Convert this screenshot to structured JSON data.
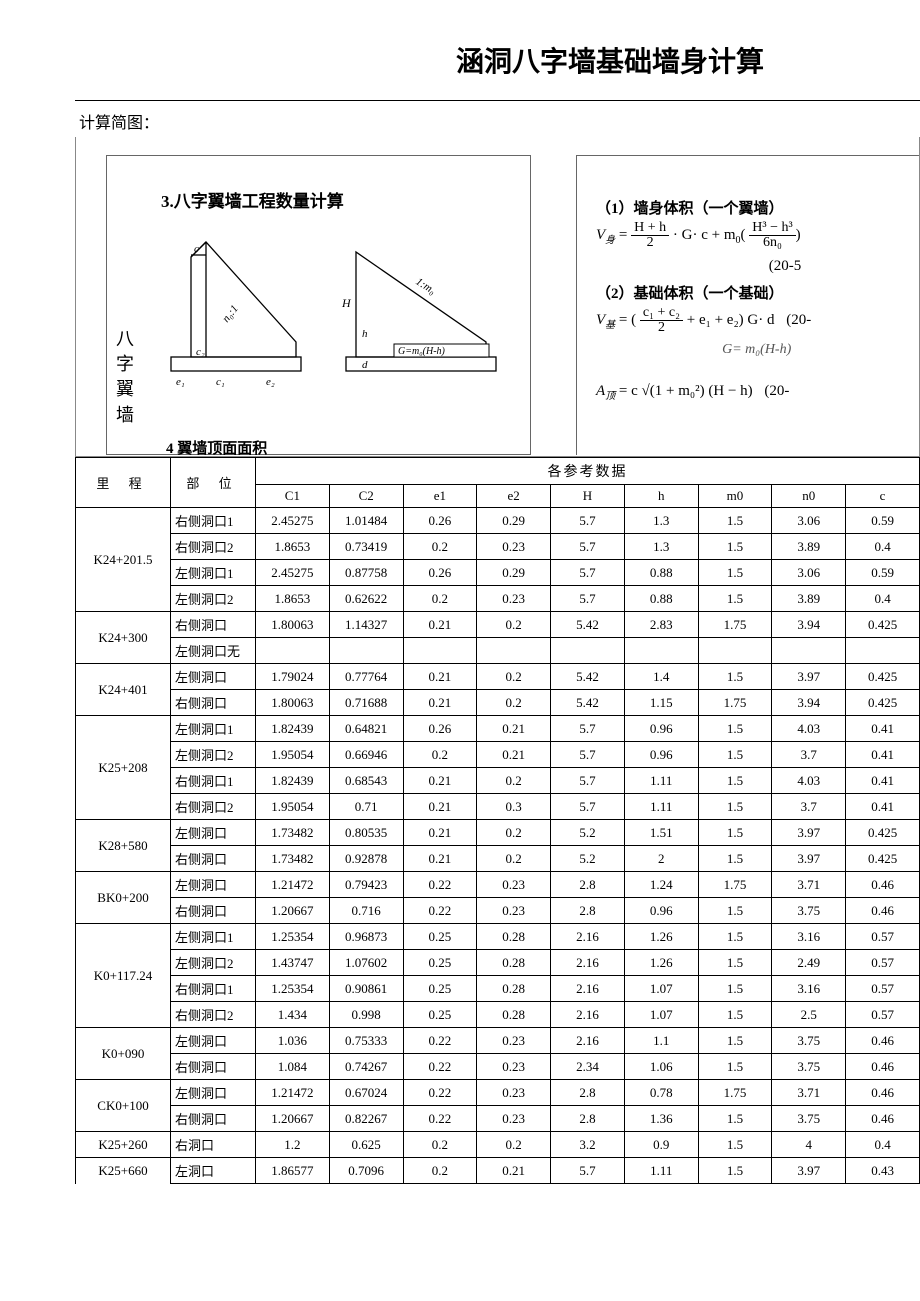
{
  "title": "涵洞八字墙基础墙身计算",
  "diagram_label": "计算简图：",
  "section_title": "3.八字翼墙工程数量计算",
  "side_vertical_label": "八字翼墙",
  "bottom_caption": "4 翼墙顶面面积",
  "formula": {
    "l1": "（1）墙身体积（一个翼墙）",
    "v_body_lhs": "V",
    "v_body_sub": "身",
    "frac1_num": "H + h",
    "frac1_den": "2",
    "mid1": "· G· c  + m",
    "m0sub": "0",
    "frac2_num": "H³ − h³",
    "frac2_den": "6n₀",
    "eq1": "(20-5",
    "l2": "（2）基础体积（一个基础）",
    "v_base_sub": "基",
    "frac3_num": "c₁ + c₂",
    "frac3_den": "2",
    "mid2": " + e₁ + e₂) G· d",
    "eq2": "(20-",
    "handnote": "G= m₀(H-h)",
    "am_lhs": "A",
    "am_sub": "顶",
    "am_rhs": "= c √(1 + m₀²) (H − h)",
    "eq3": "(20-"
  },
  "svg_labels": {
    "c": "c",
    "c1": "c₁",
    "c2": "c₂",
    "e1": "e₁",
    "e2": "e₂",
    "H": "H",
    "h": "h",
    "d": "d",
    "G": "G=m₀(H-h)",
    "slope": "1:m₀",
    "n0": "n₀:1"
  },
  "table": {
    "header_li": "里  程",
    "header_bu": "部  位",
    "header_group": "各参考数据",
    "cols": [
      "C1",
      "C2",
      "e1",
      "e2",
      "H",
      "h",
      "m0",
      "n0",
      "c"
    ],
    "groups": [
      {
        "li": "K24+201.5",
        "rows": [
          {
            "bu": "右侧洞口1",
            "v": [
              "2.45275",
              "1.01484",
              "0.26",
              "0.29",
              "5.7",
              "1.3",
              "1.5",
              "3.06",
              "0.59"
            ]
          },
          {
            "bu": "右侧洞口2",
            "v": [
              "1.8653",
              "0.73419",
              "0.2",
              "0.23",
              "5.7",
              "1.3",
              "1.5",
              "3.89",
              "0.4"
            ]
          },
          {
            "bu": "左侧洞口1",
            "v": [
              "2.45275",
              "0.87758",
              "0.26",
              "0.29",
              "5.7",
              "0.88",
              "1.5",
              "3.06",
              "0.59"
            ]
          },
          {
            "bu": "左侧洞口2",
            "v": [
              "1.8653",
              "0.62622",
              "0.2",
              "0.23",
              "5.7",
              "0.88",
              "1.5",
              "3.89",
              "0.4"
            ]
          }
        ]
      },
      {
        "li": "K24+300",
        "rows": [
          {
            "bu": "右侧洞口",
            "v": [
              "1.80063",
              "1.14327",
              "0.21",
              "0.2",
              "5.42",
              "2.83",
              "1.75",
              "3.94",
              "0.425"
            ]
          },
          {
            "bu": "左侧洞口无",
            "v": [
              "",
              "",
              "",
              "",
              "",
              "",
              "",
              "",
              ""
            ]
          }
        ]
      },
      {
        "li": "K24+401",
        "rows": [
          {
            "bu": "左侧洞口",
            "v": [
              "1.79024",
              "0.77764",
              "0.21",
              "0.2",
              "5.42",
              "1.4",
              "1.5",
              "3.97",
              "0.425"
            ]
          },
          {
            "bu": "右侧洞口",
            "v": [
              "1.80063",
              "0.71688",
              "0.21",
              "0.2",
              "5.42",
              "1.15",
              "1.75",
              "3.94",
              "0.425"
            ]
          }
        ]
      },
      {
        "li": "K25+208",
        "rows": [
          {
            "bu": "左侧洞口1",
            "v": [
              "1.82439",
              "0.64821",
              "0.26",
              "0.21",
              "5.7",
              "0.96",
              "1.5",
              "4.03",
              "0.41"
            ]
          },
          {
            "bu": "左侧洞口2",
            "v": [
              "1.95054",
              "0.66946",
              "0.2",
              "0.21",
              "5.7",
              "0.96",
              "1.5",
              "3.7",
              "0.41"
            ]
          },
          {
            "bu": "右侧洞口1",
            "v": [
              "1.82439",
              "0.68543",
              "0.21",
              "0.2",
              "5.7",
              "1.11",
              "1.5",
              "4.03",
              "0.41"
            ]
          },
          {
            "bu": "右侧洞口2",
            "v": [
              "1.95054",
              "0.71",
              "0.21",
              "0.3",
              "5.7",
              "1.11",
              "1.5",
              "3.7",
              "0.41"
            ]
          }
        ]
      },
      {
        "li": "K28+580",
        "rows": [
          {
            "bu": "左侧洞口",
            "v": [
              "1.73482",
              "0.80535",
              "0.21",
              "0.2",
              "5.2",
              "1.51",
              "1.5",
              "3.97",
              "0.425"
            ]
          },
          {
            "bu": "右侧洞口",
            "v": [
              "1.73482",
              "0.92878",
              "0.21",
              "0.2",
              "5.2",
              "2",
              "1.5",
              "3.97",
              "0.425"
            ]
          }
        ]
      },
      {
        "li": "BK0+200",
        "rows": [
          {
            "bu": "左侧洞口",
            "v": [
              "1.21472",
              "0.79423",
              "0.22",
              "0.23",
              "2.8",
              "1.24",
              "1.75",
              "3.71",
              "0.46"
            ]
          },
          {
            "bu": "右侧洞口",
            "v": [
              "1.20667",
              "0.716",
              "0.22",
              "0.23",
              "2.8",
              "0.96",
              "1.5",
              "3.75",
              "0.46"
            ]
          }
        ]
      },
      {
        "li": "K0+117.24",
        "rows": [
          {
            "bu": "左侧洞口1",
            "v": [
              "1.25354",
              "0.96873",
              "0.25",
              "0.28",
              "2.16",
              "1.26",
              "1.5",
              "3.16",
              "0.57"
            ]
          },
          {
            "bu": "左侧洞口2",
            "v": [
              "1.43747",
              "1.07602",
              "0.25",
              "0.28",
              "2.16",
              "1.26",
              "1.5",
              "2.49",
              "0.57"
            ]
          },
          {
            "bu": "右侧洞口1",
            "v": [
              "1.25354",
              "0.90861",
              "0.25",
              "0.28",
              "2.16",
              "1.07",
              "1.5",
              "3.16",
              "0.57"
            ]
          },
          {
            "bu": "右侧洞口2",
            "v": [
              "1.434",
              "0.998",
              "0.25",
              "0.28",
              "2.16",
              "1.07",
              "1.5",
              "2.5",
              "0.57"
            ]
          }
        ]
      },
      {
        "li": "K0+090",
        "rows": [
          {
            "bu": "左侧洞口",
            "v": [
              "1.036",
              "0.75333",
              "0.22",
              "0.23",
              "2.16",
              "1.1",
              "1.5",
              "3.75",
              "0.46"
            ]
          },
          {
            "bu": "右侧洞口",
            "v": [
              "1.084",
              "0.74267",
              "0.22",
              "0.23",
              "2.34",
              "1.06",
              "1.5",
              "3.75",
              "0.46"
            ]
          }
        ]
      },
      {
        "li": "CK0+100",
        "rows": [
          {
            "bu": "左侧洞口",
            "v": [
              "1.21472",
              "0.67024",
              "0.22",
              "0.23",
              "2.8",
              "0.78",
              "1.75",
              "3.71",
              "0.46"
            ]
          },
          {
            "bu": "右侧洞口",
            "v": [
              "1.20667",
              "0.82267",
              "0.22",
              "0.23",
              "2.8",
              "1.36",
              "1.5",
              "3.75",
              "0.46"
            ]
          }
        ]
      },
      {
        "li": "K25+260",
        "rows": [
          {
            "bu": "右洞口",
            "v": [
              "1.2",
              "0.625",
              "0.2",
              "0.2",
              "3.2",
              "0.9",
              "1.5",
              "4",
              "0.4"
            ]
          }
        ]
      },
      {
        "li": "K25+660",
        "rows": [
          {
            "bu": "左洞口",
            "v": [
              "1.86577",
              "0.7096",
              "0.2",
              "0.21",
              "5.7",
              "1.11",
              "1.5",
              "3.97",
              "0.43"
            ]
          }
        ]
      }
    ]
  },
  "colors": {
    "text": "#000000",
    "bg": "#ffffff",
    "border": "#000000",
    "diagram_border": "#888888"
  }
}
